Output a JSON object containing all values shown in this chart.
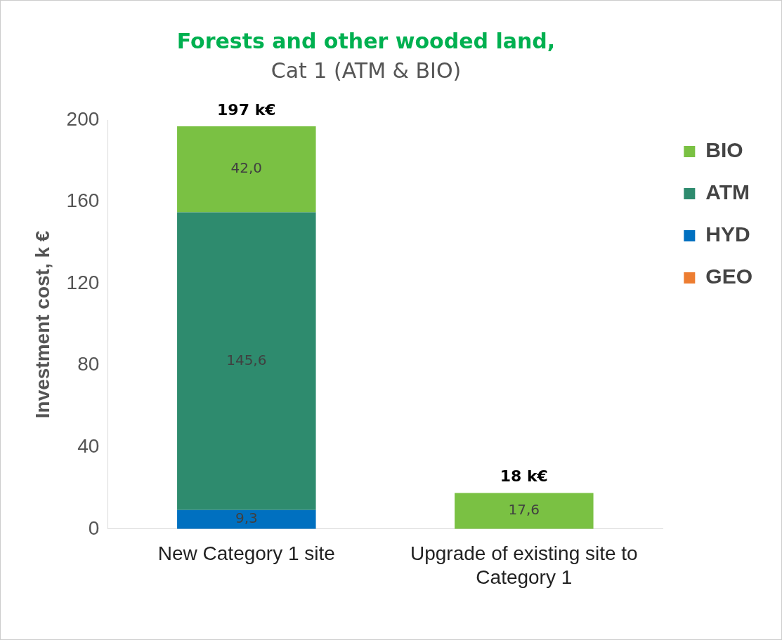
{
  "chart_data": {
    "type": "bar",
    "title": "Forests and other wooded land,",
    "subtitle": "Cat 1 (ATM & BIO)",
    "ylabel": "Investment cost, k €",
    "categories": [
      "New Category 1 site",
      "Upgrade of existing site to Category 1"
    ],
    "stacked": true,
    "series": [
      {
        "name": "GEO",
        "color": "#ed7d31",
        "values": [
          0,
          0
        ],
        "value_labels": [
          null,
          null
        ]
      },
      {
        "name": "HYD",
        "color": "#0070c0",
        "values": [
          9.3,
          0
        ],
        "value_labels": [
          "9,3",
          null
        ]
      },
      {
        "name": "ATM",
        "color": "#2e8b6e",
        "values": [
          145.6,
          0
        ],
        "value_labels": [
          "145,6",
          null
        ]
      },
      {
        "name": "BIO",
        "color": "#7ac143",
        "values": [
          42.0,
          17.6
        ],
        "value_labels": [
          "42,0",
          "17,6"
        ]
      }
    ],
    "totals": [
      "197 k€",
      "18 k€"
    ],
    "ylim": [
      0,
      200
    ],
    "yticks": [
      0,
      40,
      80,
      120,
      160,
      200
    ],
    "grid": false,
    "legend": "top right"
  }
}
